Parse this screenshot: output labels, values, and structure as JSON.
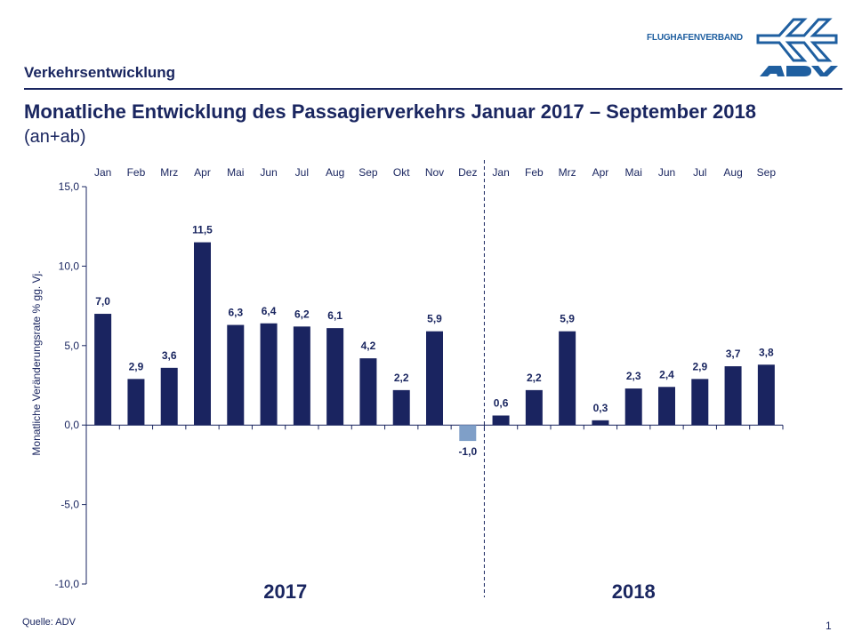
{
  "header": {
    "section": "Verkehrsentwicklung",
    "title": "Monatliche Entwicklung des Passagierverkehrs  Januar 2017 – September 2018",
    "subtitle": "(an+ab)",
    "logo_text": "FLUGHAFENVERBAND",
    "logo_mark": "ADV"
  },
  "footer": {
    "source": "Quelle: ADV",
    "page": "1"
  },
  "chart_data": {
    "type": "bar",
    "title": "Monatliche Entwicklung des Passagierverkehrs  Januar 2017 – September 2018",
    "ylabel": "Monatliche Veränderungsrate % gg. Vj.",
    "ylim": [
      -10,
      15
    ],
    "yticks": [
      15,
      10,
      5,
      0,
      -5,
      -10
    ],
    "ytick_labels": [
      "15,0",
      "10,0",
      "5,0",
      "0,0",
      "-5,0",
      "-10,0"
    ],
    "categories": [
      "Jan",
      "Feb",
      "Mrz",
      "Apr",
      "Mai",
      "Jun",
      "Jul",
      "Aug",
      "Sep",
      "Okt",
      "Nov",
      "Dez",
      "Jan",
      "Feb",
      "Mrz",
      "Apr",
      "Mai",
      "Jun",
      "Jul",
      "Aug",
      "Sep"
    ],
    "values": [
      7.0,
      2.9,
      3.6,
      11.5,
      6.3,
      6.4,
      6.2,
      6.1,
      4.2,
      2.2,
      5.9,
      -1.0,
      0.6,
      2.2,
      5.9,
      0.3,
      2.3,
      2.4,
      2.9,
      3.7,
      3.8
    ],
    "value_labels": [
      "7,0",
      "2,9",
      "3,6",
      "11,5",
      "6,3",
      "6,4",
      "6,2",
      "6,1",
      "4,2",
      "2,2",
      "5,9",
      "-1,0",
      "0,6",
      "2,2",
      "5,9",
      "0,3",
      "2,3",
      "2,4",
      "2,9",
      "3,7",
      "3,8"
    ],
    "groups": [
      {
        "label": "2017",
        "count": 12
      },
      {
        "label": "2018",
        "count": 9
      }
    ],
    "colors": {
      "positive": "#1a2460",
      "negative": "#7f9fc8",
      "axis": "#1a2660"
    },
    "grid": false,
    "legend": "none"
  }
}
